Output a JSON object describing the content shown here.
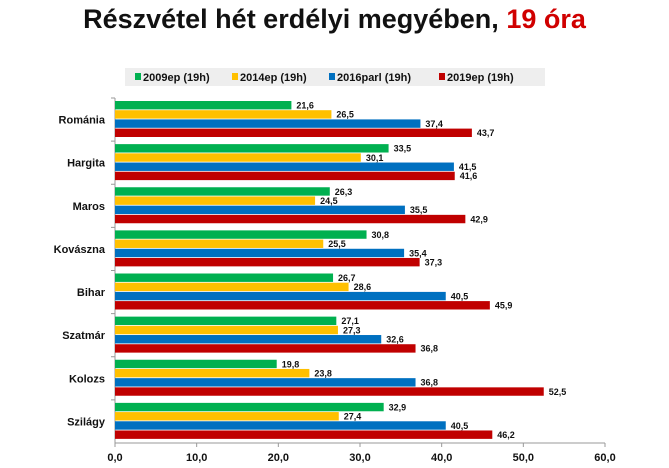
{
  "chart_data": {
    "type": "bar",
    "orientation": "horizontal",
    "title": "Részvétel hét erdélyi megyében,",
    "title_highlight": "19 óra",
    "categories": [
      "Románia",
      "Hargita",
      "Maros",
      "Kovászna",
      "Bihar",
      "Szatmár",
      "Kolozs",
      "Szilágy"
    ],
    "series": [
      {
        "name": "2009ep (19h)",
        "color": "#00b050",
        "values": [
          21.6,
          33.5,
          26.3,
          30.8,
          26.7,
          27.1,
          19.8,
          32.9
        ]
      },
      {
        "name": "2014ep (19h)",
        "color": "#ffc000",
        "values": [
          26.5,
          30.1,
          24.5,
          25.5,
          28.6,
          27.3,
          23.8,
          27.4
        ]
      },
      {
        "name": "2016parl (19h)",
        "color": "#0070c0",
        "values": [
          37.4,
          41.5,
          35.5,
          35.4,
          40.5,
          32.6,
          36.8,
          40.5
        ]
      },
      {
        "name": "2019ep (19h)",
        "color": "#c00000",
        "values": [
          43.7,
          41.6,
          42.9,
          37.3,
          45.9,
          36.8,
          52.5,
          46.2
        ]
      }
    ],
    "xlim": [
      0,
      60
    ],
    "xticks": [
      "0,0",
      "10,0",
      "20,0",
      "30,0",
      "40,0",
      "50,0",
      "60,0"
    ],
    "legend": "top",
    "grid": false
  }
}
